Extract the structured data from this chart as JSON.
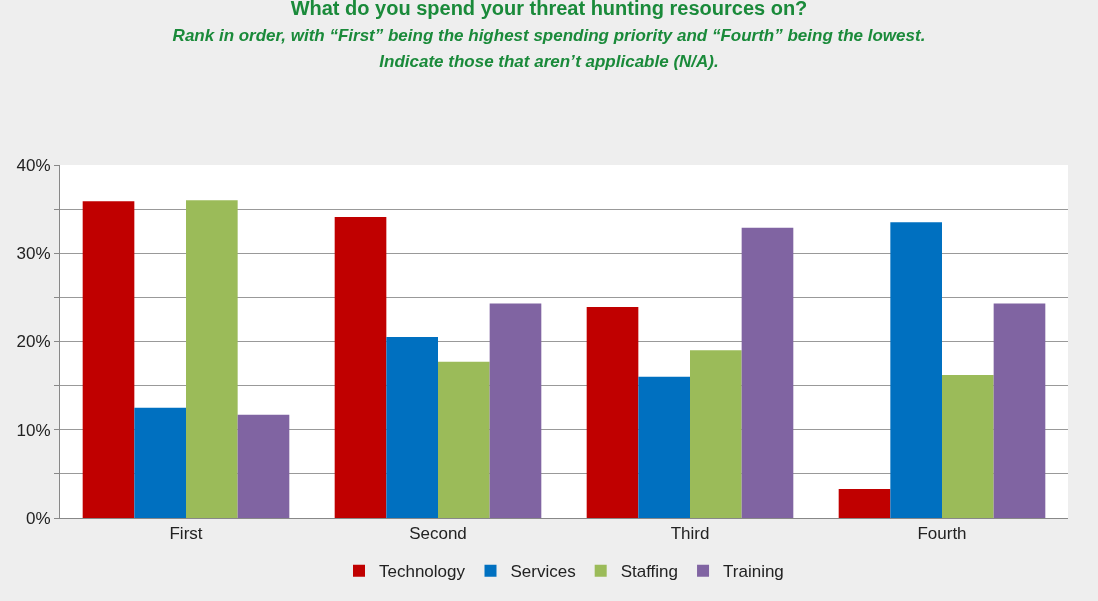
{
  "chart_data": {
    "type": "bar",
    "title": "What do you spend your threat hunting resources on?",
    "subtitle": "Rank in order, with “First” being the highest spending priority and “Fourth” being the lowest.\nIndicate those that aren’t applicable (N/A).",
    "categories": [
      "First",
      "Second",
      "Third",
      "Fourth"
    ],
    "series": [
      {
        "name": "Technology",
        "color": "#c00000",
        "values": [
          35.9,
          34.1,
          23.9,
          3.3
        ]
      },
      {
        "name": "Services",
        "color": "#0070c0",
        "values": [
          12.5,
          20.5,
          16,
          33.5
        ]
      },
      {
        "name": "Staffing",
        "color": "#9bbb59",
        "values": [
          36,
          17.7,
          19,
          16.2
        ]
      },
      {
        "name": "Training",
        "color": "#8064a2",
        "values": [
          11.7,
          24.3,
          32.9,
          24.3
        ]
      }
    ],
    "ylim": [
      0,
      40
    ],
    "yticks": [
      {
        "value": 0,
        "label": "0%"
      },
      {
        "value": 5,
        "label": null
      },
      {
        "value": 10,
        "label": "10%"
      },
      {
        "value": 15,
        "label": null
      },
      {
        "value": 20,
        "label": "20%"
      },
      {
        "value": 25,
        "label": null
      },
      {
        "value": 30,
        "label": "30%"
      },
      {
        "value": 35,
        "label": null
      },
      {
        "value": 40,
        "label": "40%"
      }
    ],
    "grid": "y",
    "legend": "bottom"
  }
}
